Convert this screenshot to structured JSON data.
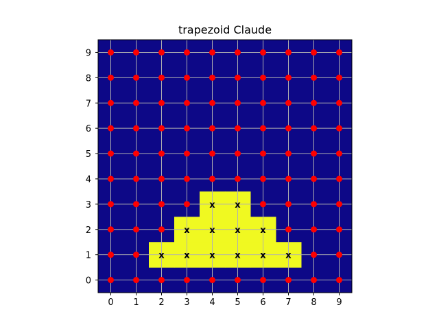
{
  "chart_data": {
    "type": "heatmap",
    "title": "trapezoid Claude",
    "xlabel": "",
    "ylabel": "",
    "xlim": [
      -0.5,
      9.5
    ],
    "ylim": [
      -0.5,
      9.5
    ],
    "x_ticks": [
      "0",
      "1",
      "2",
      "3",
      "4",
      "5",
      "6",
      "7",
      "8",
      "9"
    ],
    "y_ticks": [
      "0",
      "1",
      "2",
      "3",
      "4",
      "5",
      "6",
      "7",
      "8",
      "9"
    ],
    "grid": true,
    "legend": "none",
    "colors": {
      "background": "#0d0887",
      "filled": "#f0f921",
      "point": "#ff0000",
      "grid": "#b0b0b0"
    },
    "filled_cells": [
      {
        "x": 2,
        "y": 1
      },
      {
        "x": 3,
        "y": 1
      },
      {
        "x": 4,
        "y": 1
      },
      {
        "x": 5,
        "y": 1
      },
      {
        "x": 6,
        "y": 1
      },
      {
        "x": 7,
        "y": 1
      },
      {
        "x": 3,
        "y": 2
      },
      {
        "x": 4,
        "y": 2
      },
      {
        "x": 5,
        "y": 2
      },
      {
        "x": 6,
        "y": 2
      },
      {
        "x": 4,
        "y": 3
      },
      {
        "x": 5,
        "y": 3
      }
    ],
    "cell_marker": "x",
    "point_marker": "red-circle",
    "grid_size": 10
  }
}
